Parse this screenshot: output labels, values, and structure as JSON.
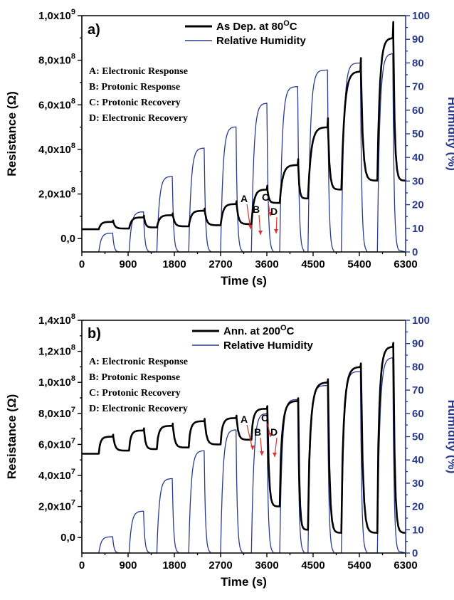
{
  "chart_data": [
    {
      "type": "line",
      "panel_label": "a)",
      "xlabel": "Time (s)",
      "ylabel": "Resistance (Ω)",
      "ylabel_right": "Humidity (%)",
      "xlim": [
        0,
        6300
      ],
      "ylim": [
        -60000000.0,
        1000000000.0
      ],
      "ylim_right": [
        0,
        100
      ],
      "x_ticks": [
        "0",
        "900",
        "1800",
        "2700",
        "3600",
        "4500",
        "5400",
        "6300"
      ],
      "y_ticks": [
        "0,0",
        "2,0x10",
        "4,0x10",
        "6,0x10",
        "8,0x10",
        "1,0x10"
      ],
      "y_tick_exponents": [
        "",
        "8",
        "8",
        "8",
        "8",
        "9"
      ],
      "y_right_ticks": [
        "0",
        "10",
        "20",
        "30",
        "40",
        "50",
        "60",
        "70",
        "80",
        "90",
        "100"
      ],
      "legend": [
        {
          "name": "As Dep. at 80",
          "sup": "O",
          "suffix": "C",
          "color": "#000000"
        },
        {
          "name": "Relative Humidity",
          "sup": "",
          "suffix": "",
          "color": "#2a3a8f"
        }
      ],
      "notes": [
        "A: Electronic Response",
        "B: Protonic Response",
        "C: Protonic Recovery",
        "D: Electronic Recovery"
      ],
      "annotations": [
        "A",
        "B",
        "C",
        "D"
      ],
      "humidity_steps": [
        {
          "start": 330,
          "end": 600,
          "rh": 8
        },
        {
          "start": 920,
          "end": 1200,
          "rh": 17
        },
        {
          "start": 1460,
          "end": 1760,
          "rh": 32
        },
        {
          "start": 2080,
          "end": 2380,
          "rh": 44
        },
        {
          "start": 2700,
          "end": 3000,
          "rh": 53
        },
        {
          "start": 3300,
          "end": 3600,
          "rh": 63
        },
        {
          "start": 3850,
          "end": 4200,
          "rh": 70
        },
        {
          "start": 4400,
          "end": 4780,
          "rh": 77
        },
        {
          "start": 5050,
          "end": 5420,
          "rh": 80
        },
        {
          "start": 5750,
          "end": 6050,
          "rh": 84
        }
      ],
      "resistance_cycles": [
        {
          "start": 330,
          "end": 600,
          "base": 42000000.0,
          "top": 75000000.0
        },
        {
          "start": 920,
          "end": 1200,
          "base": 45000000.0,
          "top": 95000000.0
        },
        {
          "start": 1460,
          "end": 1760,
          "base": 50000000.0,
          "top": 105000000.0
        },
        {
          "start": 2080,
          "end": 2380,
          "base": 55000000.0,
          "top": 125000000.0
        },
        {
          "start": 2700,
          "end": 3000,
          "base": 60000000.0,
          "top": 155000000.0
        },
        {
          "start": 3300,
          "end": 3600,
          "base": 65000000.0,
          "top": 220000000.0
        },
        {
          "start": 3850,
          "end": 4200,
          "base": 160000000.0,
          "top": 330000000.0
        },
        {
          "start": 4400,
          "end": 4780,
          "base": 180000000.0,
          "top": 500000000.0
        },
        {
          "start": 5050,
          "end": 5420,
          "base": 220000000.0,
          "top": 750000000.0
        },
        {
          "start": 5750,
          "end": 6050,
          "base": 260000000.0,
          "top": 900000000.0
        }
      ]
    },
    {
      "type": "line",
      "panel_label": "b)",
      "xlabel": "Time (s)",
      "ylabel": "Resistance (Ω)",
      "ylabel_right": "Humidity (%)",
      "xlim": [
        0,
        6300
      ],
      "ylim": [
        -10000000.0,
        140000000.0
      ],
      "ylim_right": [
        0,
        100
      ],
      "x_ticks": [
        "0",
        "900",
        "1800",
        "2700",
        "3600",
        "4500",
        "5400",
        "6300"
      ],
      "y_ticks": [
        "0,0",
        "2,0x10",
        "4,0x10",
        "6,0x10",
        "8,0x10",
        "1,0x10",
        "1,2x10",
        "1,4x10"
      ],
      "y_tick_exponents": [
        "",
        "7",
        "7",
        "7",
        "7",
        "8",
        "8",
        "8"
      ],
      "y_right_ticks": [
        "0",
        "10",
        "20",
        "30",
        "40",
        "50",
        "60",
        "70",
        "80",
        "90",
        "100"
      ],
      "legend": [
        {
          "name": "Ann. at 200",
          "sup": "O",
          "suffix": "C",
          "color": "#000000"
        },
        {
          "name": "Relative Humidity",
          "sup": "",
          "suffix": "",
          "color": "#2a3a8f"
        }
      ],
      "notes": [
        "A: Electronic Response",
        "B: Protonic Response",
        "C: Protonic Recovery",
        "D: Electronic Recovery"
      ],
      "annotations": [
        "A",
        "B",
        "C",
        "D"
      ],
      "humidity_steps": [
        {
          "start": 330,
          "end": 600,
          "rh": 7
        },
        {
          "start": 920,
          "end": 1200,
          "rh": 18
        },
        {
          "start": 1460,
          "end": 1760,
          "rh": 32
        },
        {
          "start": 2080,
          "end": 2380,
          "rh": 44
        },
        {
          "start": 2700,
          "end": 3000,
          "rh": 53
        },
        {
          "start": 3300,
          "end": 3600,
          "rh": 60
        },
        {
          "start": 3850,
          "end": 4200,
          "rh": 66
        },
        {
          "start": 4400,
          "end": 4780,
          "rh": 72
        },
        {
          "start": 5050,
          "end": 5420,
          "rh": 78
        },
        {
          "start": 5750,
          "end": 6050,
          "rh": 84
        }
      ],
      "resistance_cycles": [
        {
          "start": 330,
          "end": 600,
          "base": 54000000.0,
          "top": 65000000.0
        },
        {
          "start": 920,
          "end": 1200,
          "base": 56000000.0,
          "top": 69000000.0
        },
        {
          "start": 1460,
          "end": 1760,
          "base": 57000000.0,
          "top": 72000000.0
        },
        {
          "start": 2080,
          "end": 2380,
          "base": 58000000.0,
          "top": 75000000.0
        },
        {
          "start": 2700,
          "end": 3000,
          "base": 60000000.0,
          "top": 77000000.0
        },
        {
          "start": 3300,
          "end": 3600,
          "base": 63000000.0,
          "top": 83000000.0
        },
        {
          "start": 3850,
          "end": 4200,
          "base": 20000000.0,
          "top": 88000000.0
        },
        {
          "start": 4400,
          "end": 4780,
          "base": 5000000.0,
          "top": 100000000.0
        },
        {
          "start": 5050,
          "end": 5420,
          "base": 3000000.0,
          "top": 110000000.0
        },
        {
          "start": 5750,
          "end": 6050,
          "base": 3000000.0,
          "top": 123000000.0
        }
      ]
    }
  ]
}
